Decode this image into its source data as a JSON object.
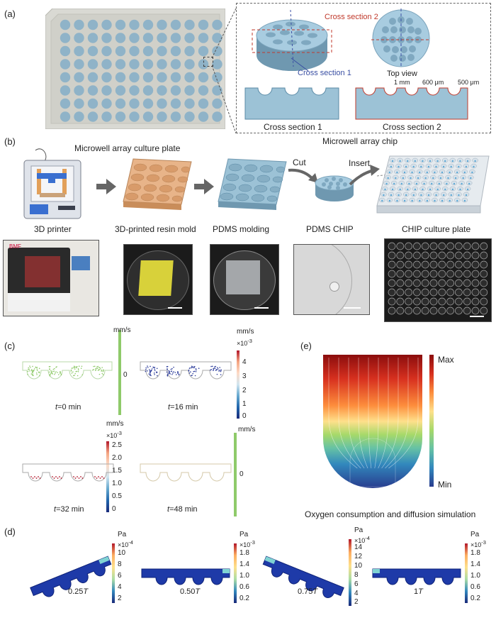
{
  "panels": {
    "a": "(a)",
    "b": "(b)",
    "c": "(c)",
    "d": "(d)",
    "e": "(e)"
  },
  "a": {
    "cross_section_2": "Cross section 2",
    "cross_section_1": "Cross section 1",
    "top_view": "Top view",
    "dim_1mm": "1 mm",
    "dim_600": "600 μm",
    "dim_500": "500 μm",
    "cs1_caption": "Cross section 1",
    "cs2_caption": "Cross section 2",
    "chip_caption": "Microwell array chip"
  },
  "b": {
    "plate_title": "Microwell array culture plate",
    "cut": "Cut",
    "insert": "Insert",
    "captions": [
      "3D printer",
      "3D-printed resin mold",
      "PDMS molding",
      "PDMS CHIP",
      "CHIP culture plate"
    ],
    "printer_logo": "BMF"
  },
  "c": {
    "unit_mm_s": "mm/s",
    "t0": {
      "t": "t",
      "rest": "=0 min",
      "tick_zero": "0"
    },
    "t16": {
      "t": "t",
      "rest": "=16 min",
      "exp": "×10",
      "exp_sup": "-3",
      "ticks": [
        "4",
        "3",
        "2",
        "1",
        "0"
      ]
    },
    "t32": {
      "t": "t",
      "rest": "=32 min",
      "exp": "×10",
      "exp_sup": "-3",
      "ticks": [
        "2.5",
        "2.0",
        "1.5",
        "1.0",
        "0.5",
        "0"
      ]
    },
    "t48": {
      "t": "t",
      "rest": "=48 min",
      "tick_zero": "0"
    }
  },
  "e": {
    "max": "Max",
    "min": "Min",
    "caption": "Oxygen consumption and diffusion simulation"
  },
  "d": {
    "unit": "Pa",
    "p1": {
      "exp": "×10",
      "exp_sup": "-4",
      "ticks": [
        "10",
        "8",
        "6",
        "4",
        "2"
      ],
      "label": "0.25",
      "T": "T"
    },
    "p2": {
      "exp": "×10",
      "exp_sup": "-3",
      "ticks": [
        "1.8",
        "1.4",
        "1.0",
        "0.6",
        "0.2"
      ],
      "label": "0.50",
      "T": "T"
    },
    "p3": {
      "exp": "×10",
      "exp_sup": "-4",
      "ticks": [
        "14",
        "12",
        "10",
        "8",
        "6",
        "4",
        "2"
      ],
      "label": "0.75",
      "T": "T"
    },
    "p4": {
      "exp": "×10",
      "exp_sup": "-3",
      "ticks": [
        "1.8",
        "1.4",
        "1.0",
        "0.6",
        "0.2"
      ],
      "label": "1",
      "T": "T"
    }
  },
  "colors": {
    "well_blue": "#8fb3c8",
    "plate_bg": "#d9d9d3",
    "chip_blue": "#9cc2d6",
    "resin": "#e8b489",
    "red_dash": "#c0392b",
    "blue_dash": "#3a4fa3",
    "green_bar": "#8fca6a"
  }
}
